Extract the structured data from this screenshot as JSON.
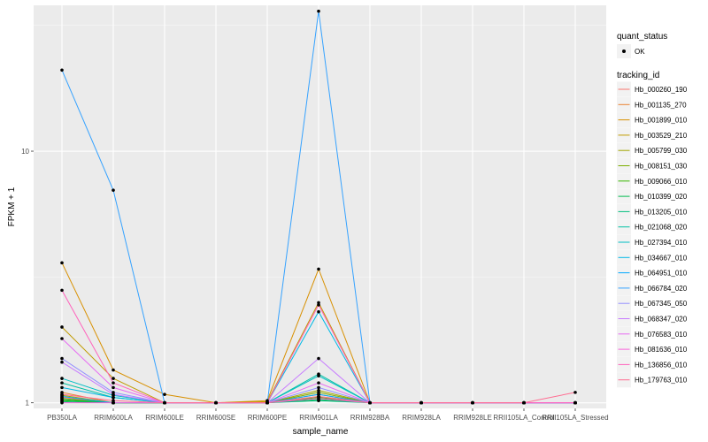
{
  "chart_data": {
    "type": "line",
    "xlabel": "sample_name",
    "ylabel": "FPKM + 1",
    "y_scale": "log10",
    "ylim": [
      0.95,
      38
    ],
    "y_ticks": [
      1,
      10
    ],
    "y_tick_labels": [
      "1",
      "10"
    ],
    "categories": [
      "PB350LA",
      "RRIM600LA",
      "RRIM600LE",
      "RRIM600SE",
      "RRIM600PE",
      "RRIM901LA",
      "RRIM928BA",
      "RRIM928LA",
      "RRIM928LE",
      "RRII105LA_Control",
      "RRII105LA_Stressed"
    ],
    "grid": true,
    "legend_position": "right",
    "points_color": "#000000",
    "quant_status": {
      "title": "quant_status",
      "items": [
        {
          "label": "OK",
          "color": "#000000"
        }
      ]
    },
    "legend_title": "tracking_id",
    "series": [
      {
        "name": "Hb_000260_190",
        "color": "#F8766D",
        "values": [
          1.05,
          1.0,
          1.0,
          1.0,
          1.0,
          1.06,
          1.0,
          1.0,
          1.0,
          1.0,
          1.0
        ]
      },
      {
        "name": "Hb_001135_270",
        "color": "#EA8331",
        "values": [
          1.1,
          1.0,
          1.0,
          1.0,
          1.0,
          1.08,
          1.0,
          1.0,
          1.0,
          1.0,
          1.0
        ]
      },
      {
        "name": "Hb_001899_010",
        "color": "#D89000",
        "values": [
          3.6,
          1.35,
          1.08,
          1.0,
          1.02,
          3.4,
          1.0,
          1.0,
          1.0,
          1.0,
          1.0
        ]
      },
      {
        "name": "Hb_003529_210",
        "color": "#C09B00",
        "values": [
          2.0,
          1.25,
          1.0,
          1.0,
          1.01,
          2.5,
          1.0,
          1.0,
          1.0,
          1.0,
          1.0
        ]
      },
      {
        "name": "Hb_005799_030",
        "color": "#A3A500",
        "values": [
          1.07,
          1.0,
          1.0,
          1.0,
          1.0,
          1.12,
          1.0,
          1.0,
          1.0,
          1.0,
          1.0
        ]
      },
      {
        "name": "Hb_008151_030",
        "color": "#7CAE00",
        "values": [
          1.04,
          1.0,
          1.0,
          1.0,
          1.0,
          1.1,
          1.0,
          1.0,
          1.0,
          1.0,
          1.0
        ]
      },
      {
        "name": "Hb_009066_010",
        "color": "#39B600",
        "values": [
          1.02,
          1.0,
          1.0,
          1.0,
          1.0,
          1.05,
          1.0,
          1.0,
          1.0,
          1.0,
          1.0
        ]
      },
      {
        "name": "Hb_010399_020",
        "color": "#00BB4E",
        "values": [
          1.03,
          1.0,
          1.0,
          1.0,
          1.0,
          1.03,
          1.0,
          1.0,
          1.0,
          1.0,
          1.0
        ]
      },
      {
        "name": "Hb_013205_010",
        "color": "#00BF7D",
        "values": [
          1.01,
          1.0,
          1.0,
          1.0,
          1.0,
          1.02,
          1.0,
          1.0,
          1.0,
          1.0,
          1.0
        ]
      },
      {
        "name": "Hb_021068_020",
        "color": "#00C1A3",
        "values": [
          1.2,
          1.05,
          1.0,
          1.0,
          1.0,
          1.3,
          1.0,
          1.0,
          1.0,
          1.0,
          1.0
        ]
      },
      {
        "name": "Hb_027394_010",
        "color": "#00BFC4",
        "values": [
          1.25,
          1.07,
          1.0,
          1.0,
          1.0,
          1.28,
          1.0,
          1.0,
          1.0,
          1.0,
          1.0
        ]
      },
      {
        "name": "Hb_034667_010",
        "color": "#00B8E5",
        "values": [
          1.15,
          1.05,
          1.0,
          1.0,
          1.0,
          2.3,
          1.0,
          1.0,
          1.0,
          1.0,
          1.0
        ]
      },
      {
        "name": "Hb_064951_010",
        "color": "#00A9FF",
        "values": [
          1.06,
          1.0,
          1.0,
          1.0,
          1.0,
          1.08,
          1.0,
          1.0,
          1.0,
          1.0,
          1.0
        ]
      },
      {
        "name": "Hb_066784_020",
        "color": "#35A2FF",
        "values": [
          21.0,
          7.0,
          1.0,
          1.0,
          1.0,
          36.0,
          1.0,
          1.0,
          1.0,
          1.0,
          1.0
        ]
      },
      {
        "name": "Hb_067345_050",
        "color": "#9590FF",
        "values": [
          1.5,
          1.1,
          1.0,
          1.0,
          1.0,
          1.15,
          1.0,
          1.0,
          1.0,
          1.0,
          1.0
        ]
      },
      {
        "name": "Hb_068347_020",
        "color": "#C77CFF",
        "values": [
          1.45,
          1.08,
          1.0,
          1.0,
          1.0,
          1.5,
          1.0,
          1.0,
          1.0,
          1.0,
          1.0
        ]
      },
      {
        "name": "Hb_076583_010",
        "color": "#E76BF3",
        "values": [
          1.8,
          1.15,
          1.0,
          1.0,
          1.0,
          1.2,
          1.0,
          1.0,
          1.0,
          1.0,
          1.0
        ]
      },
      {
        "name": "Hb_081636_010",
        "color": "#FA62DB",
        "values": [
          1.0,
          1.0,
          1.0,
          1.0,
          1.0,
          1.04,
          1.0,
          1.0,
          1.0,
          1.0,
          1.0
        ]
      },
      {
        "name": "Hb_136856_010",
        "color": "#FF62BC",
        "values": [
          2.8,
          1.2,
          1.0,
          1.0,
          1.0,
          2.45,
          1.0,
          1.0,
          1.0,
          1.0,
          1.0
        ]
      },
      {
        "name": "Hb_179763_010",
        "color": "#FF6C91",
        "values": [
          1.08,
          1.02,
          1.0,
          1.0,
          1.0,
          1.06,
          1.0,
          1.0,
          1.0,
          1.0,
          1.1
        ]
      }
    ]
  }
}
